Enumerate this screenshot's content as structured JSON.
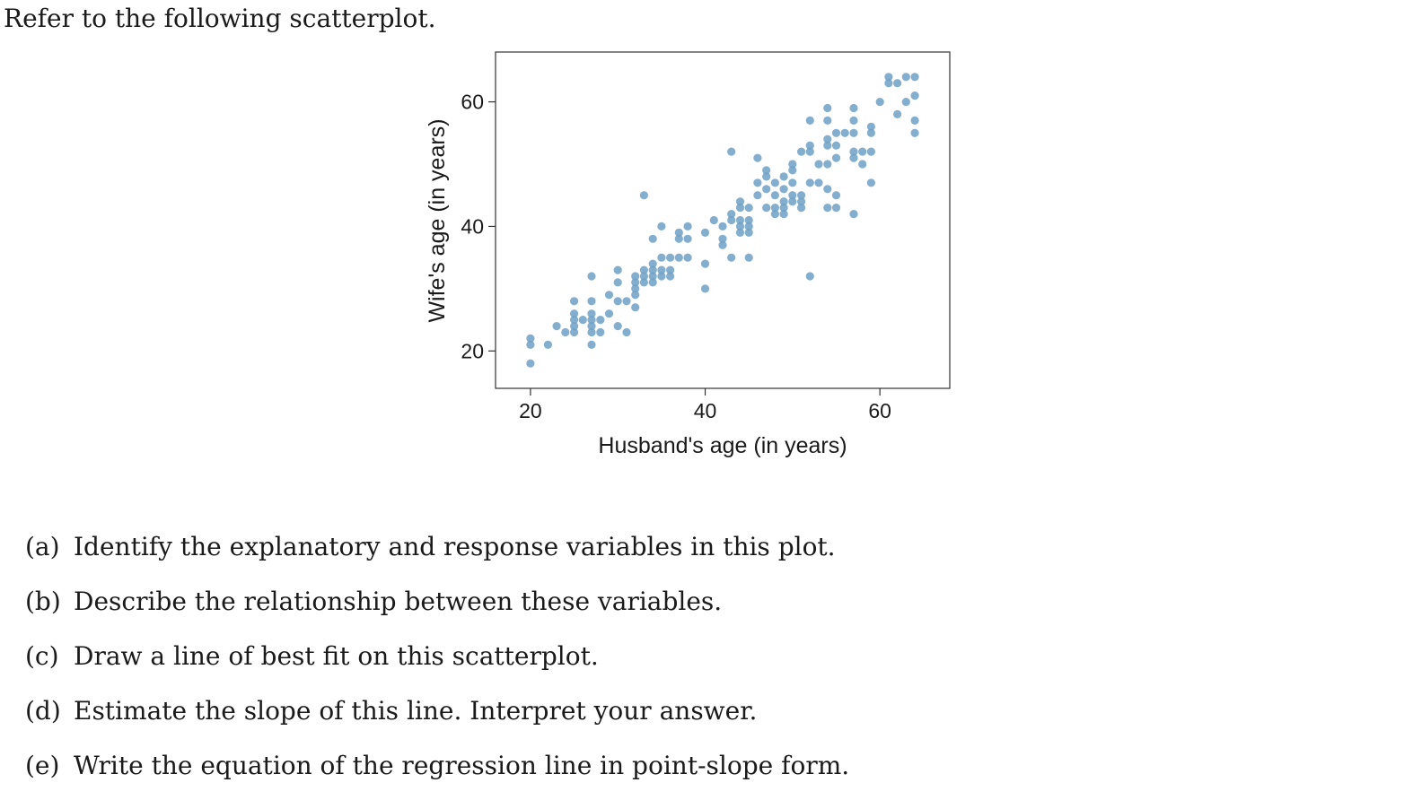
{
  "intro_text": "Refer to the following scatterplot.",
  "chart_data": {
    "type": "scatter",
    "xlabel": "Husband's age (in years)",
    "ylabel": "Wife's age (in years)",
    "xlim": [
      16,
      68
    ],
    "ylim": [
      14,
      68
    ],
    "xticks": [
      20,
      40,
      60
    ],
    "yticks": [
      20,
      40,
      60
    ],
    "grid": false,
    "point_color": "#6fa0c4",
    "points": [
      [
        20,
        22
      ],
      [
        20,
        21
      ],
      [
        20,
        18
      ],
      [
        22,
        21
      ],
      [
        23,
        24
      ],
      [
        24,
        23
      ],
      [
        25,
        23
      ],
      [
        25,
        24
      ],
      [
        25,
        25
      ],
      [
        25,
        26
      ],
      [
        25,
        28
      ],
      [
        26,
        25
      ],
      [
        27,
        32
      ],
      [
        27,
        28
      ],
      [
        27,
        26
      ],
      [
        27,
        25
      ],
      [
        27,
        24
      ],
      [
        27,
        23
      ],
      [
        27,
        21
      ],
      [
        28,
        25
      ],
      [
        28,
        23
      ],
      [
        29,
        29
      ],
      [
        29,
        26
      ],
      [
        30,
        33
      ],
      [
        30,
        31
      ],
      [
        30,
        28
      ],
      [
        30,
        24
      ],
      [
        31,
        28
      ],
      [
        31,
        23
      ],
      [
        32,
        32
      ],
      [
        32,
        31
      ],
      [
        32,
        30
      ],
      [
        32,
        29
      ],
      [
        32,
        27
      ],
      [
        33,
        45
      ],
      [
        33,
        33
      ],
      [
        33,
        32
      ],
      [
        33,
        31
      ],
      [
        34,
        34
      ],
      [
        34,
        33
      ],
      [
        34,
        32
      ],
      [
        34,
        31
      ],
      [
        34,
        38
      ],
      [
        35,
        40
      ],
      [
        35,
        35
      ],
      [
        35,
        33
      ],
      [
        35,
        32
      ],
      [
        36,
        35
      ],
      [
        36,
        33
      ],
      [
        36,
        32
      ],
      [
        37,
        39
      ],
      [
        37,
        38
      ],
      [
        37,
        35
      ],
      [
        38,
        40
      ],
      [
        38,
        38
      ],
      [
        38,
        35
      ],
      [
        40,
        39
      ],
      [
        40,
        34
      ],
      [
        40,
        30
      ],
      [
        41,
        41
      ],
      [
        42,
        40
      ],
      [
        42,
        38
      ],
      [
        42,
        37
      ],
      [
        43,
        52
      ],
      [
        43,
        42
      ],
      [
        43,
        41
      ],
      [
        43,
        35
      ],
      [
        44,
        44
      ],
      [
        44,
        43
      ],
      [
        44,
        41
      ],
      [
        44,
        40
      ],
      [
        44,
        39
      ],
      [
        45,
        43
      ],
      [
        45,
        41
      ],
      [
        45,
        40
      ],
      [
        45,
        39
      ],
      [
        45,
        35
      ],
      [
        46,
        51
      ],
      [
        46,
        47
      ],
      [
        46,
        45
      ],
      [
        47,
        49
      ],
      [
        47,
        48
      ],
      [
        47,
        46
      ],
      [
        47,
        43
      ],
      [
        48,
        47
      ],
      [
        48,
        45
      ],
      [
        48,
        43
      ],
      [
        48,
        42
      ],
      [
        49,
        48
      ],
      [
        49,
        46
      ],
      [
        49,
        44
      ],
      [
        49,
        43
      ],
      [
        49,
        42
      ],
      [
        50,
        50
      ],
      [
        50,
        49
      ],
      [
        50,
        47
      ],
      [
        50,
        45
      ],
      [
        50,
        44
      ],
      [
        51,
        52
      ],
      [
        51,
        45
      ],
      [
        51,
        44
      ],
      [
        51,
        43
      ],
      [
        52,
        57
      ],
      [
        52,
        53
      ],
      [
        52,
        52
      ],
      [
        52,
        47
      ],
      [
        52,
        32
      ],
      [
        53,
        50
      ],
      [
        53,
        47
      ],
      [
        54,
        59
      ],
      [
        54,
        57
      ],
      [
        54,
        54
      ],
      [
        54,
        53
      ],
      [
        54,
        50
      ],
      [
        54,
        46
      ],
      [
        54,
        43
      ],
      [
        55,
        55
      ],
      [
        55,
        53
      ],
      [
        55,
        51
      ],
      [
        55,
        45
      ],
      [
        55,
        43
      ],
      [
        56,
        55
      ],
      [
        57,
        59
      ],
      [
        57,
        57
      ],
      [
        57,
        55
      ],
      [
        57,
        52
      ],
      [
        57,
        51
      ],
      [
        57,
        42
      ],
      [
        58,
        52
      ],
      [
        58,
        50
      ],
      [
        59,
        56
      ],
      [
        59,
        55
      ],
      [
        59,
        52
      ],
      [
        59,
        47
      ],
      [
        60,
        60
      ],
      [
        61,
        64
      ],
      [
        61,
        63
      ],
      [
        62,
        63
      ],
      [
        62,
        58
      ],
      [
        63,
        64
      ],
      [
        63,
        60
      ],
      [
        64,
        64
      ],
      [
        64,
        61
      ],
      [
        64,
        57
      ],
      [
        64,
        55
      ]
    ]
  },
  "questions": [
    {
      "label": "(a)",
      "text": "Identify the explanatory and response variables in this plot."
    },
    {
      "label": "(b)",
      "text": "Describe the relationship between these variables."
    },
    {
      "label": "(c)",
      "text": "Draw a line of best fit on this scatterplot."
    },
    {
      "label": "(d)",
      "text": "Estimate the slope of this line. Interpret your answer."
    },
    {
      "label": "(e)",
      "text": "Write the equation of the regression line in point-slope form."
    }
  ]
}
